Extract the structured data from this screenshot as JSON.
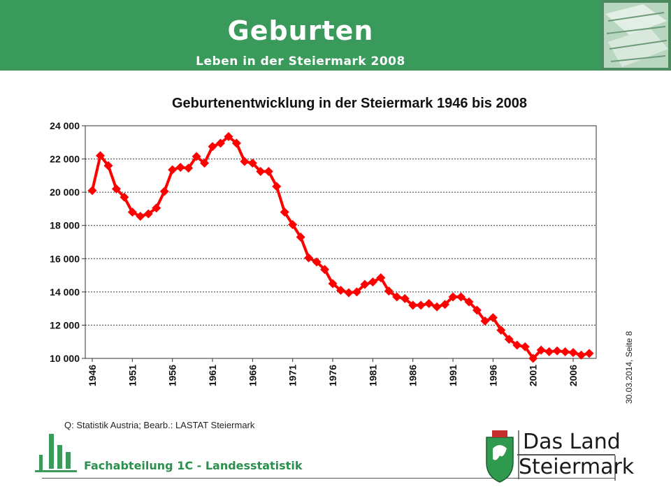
{
  "header": {
    "title": "Geburten",
    "subtitle": "Leben in der Steiermark 2008"
  },
  "side_note": "30.03.2014, Seite 8",
  "source_note": "Q: Statistik Austria; Bearb.: LASTAT Steiermark",
  "footer": {
    "department": "Fachabteilung 1C -  Landesstatistik",
    "logo_line1": "Das Land",
    "logo_line2": "Steiermark"
  },
  "colors": {
    "header_green": "#3a9a5b",
    "series_red": "#ff0000",
    "footer_text_green": "#2b8f4d"
  },
  "chart_data": {
    "type": "line",
    "title": "Geburtenentwicklung in der Steiermark 1946 bis 2008",
    "xlabel": "",
    "ylabel": "",
    "ylim": [
      10000,
      24000
    ],
    "y_ticks": [
      "10 000",
      "12 000",
      "14 000",
      "16 000",
      "18 000",
      "20 000",
      "22 000",
      "24 000"
    ],
    "x_ticks": [
      "1946",
      "1951",
      "1956",
      "1961",
      "1966",
      "1971",
      "1976",
      "1981",
      "1986",
      "1991",
      "1996",
      "2001",
      "2006"
    ],
    "grid": "horizontal dashed",
    "legend": "none",
    "series": [
      {
        "x": [
          1946,
          1947,
          1948,
          1949,
          1950,
          1951,
          1952,
          1953,
          1954,
          1955,
          1956,
          1957,
          1958,
          1959,
          1960,
          1961,
          1962,
          1963,
          1964,
          1965,
          1966,
          1967,
          1968,
          1969,
          1970,
          1971,
          1972,
          1973,
          1974,
          1975,
          1976,
          1977,
          1978,
          1979,
          1980,
          1981,
          1982,
          1983,
          1984,
          1985,
          1986,
          1987,
          1988,
          1989,
          1990,
          1991,
          1992,
          1993,
          1994,
          1995,
          1996,
          1997,
          1998,
          1999,
          2000,
          2001,
          2002,
          2003,
          2004,
          2005,
          2006,
          2007,
          2008
        ],
        "values": [
          20100,
          22200,
          21600,
          20200,
          19700,
          18800,
          18550,
          18700,
          19050,
          20050,
          21350,
          21500,
          21450,
          22150,
          21750,
          22750,
          22950,
          23350,
          22950,
          21850,
          21750,
          21250,
          21250,
          20350,
          18800,
          18050,
          17300,
          16050,
          15800,
          15350,
          14500,
          14100,
          13950,
          14000,
          14450,
          14600,
          14850,
          14050,
          13700,
          13600,
          13200,
          13200,
          13300,
          13100,
          13250,
          13700,
          13700,
          13400,
          12900,
          12250,
          12450,
          11700,
          11150,
          10800,
          10700,
          10000,
          10500,
          10400,
          10450,
          10400,
          10350,
          10200,
          10300
        ]
      }
    ]
  }
}
